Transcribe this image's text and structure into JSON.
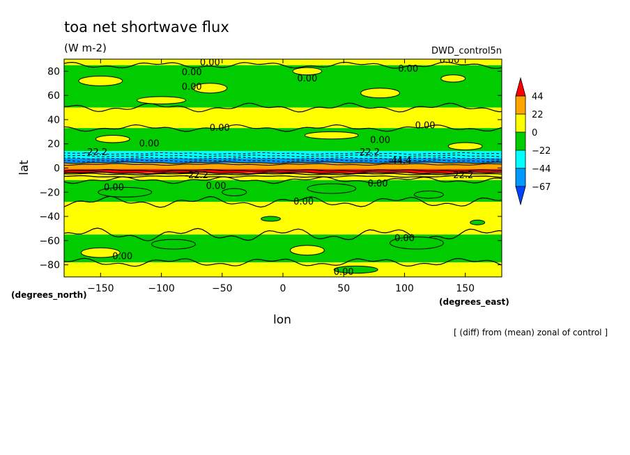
{
  "chart_data": {
    "type": "heatmap",
    "title": "toa net shortwave flux",
    "units": "(W m-2)",
    "run_label": "DWD_control5n",
    "xlabel": "lon",
    "ylabel": "lat",
    "x_unit_label": "(degrees_east)",
    "y_unit_label": "(degrees_north)",
    "subtitle": "[ (diff) from (mean) zonal of control ]",
    "xlim": [
      -180,
      180
    ],
    "ylim": [
      -90,
      90
    ],
    "x_ticks": [
      -150,
      -100,
      -50,
      0,
      50,
      100,
      150
    ],
    "y_ticks": [
      80,
      60,
      40,
      20,
      0,
      -20,
      -40,
      -60,
      -80
    ],
    "colorbar": {
      "levels": [
        "44",
        "22",
        "0",
        "-22",
        "-44",
        "-67"
      ],
      "colors": [
        "#ff0000",
        "#ffa500",
        "#ffff00",
        "#00cc00",
        "#00ffff",
        "#0099ff",
        "#0044ff"
      ]
    },
    "bands": [
      {
        "lat_top": 90,
        "lat_bottom": 85,
        "value": 5
      },
      {
        "lat_top": 85,
        "lat_bottom": 50,
        "value": -8
      },
      {
        "lat_top": 50,
        "lat_bottom": 33,
        "value": 5
      },
      {
        "lat_top": 33,
        "lat_bottom": 14,
        "value": -8
      },
      {
        "lat_top": 14,
        "lat_bottom": 8,
        "value": -30
      },
      {
        "lat_top": 8,
        "lat_bottom": 4,
        "value": -50
      },
      {
        "lat_top": 4,
        "lat_bottom": -1,
        "value": 40
      },
      {
        "lat_top": -1,
        "lat_bottom": -4,
        "value": 50
      },
      {
        "lat_top": -4,
        "lat_bottom": -10,
        "value": 5
      },
      {
        "lat_top": -10,
        "lat_bottom": -28,
        "value": -8
      },
      {
        "lat_top": -28,
        "lat_bottom": -55,
        "value": 5
      },
      {
        "lat_top": -55,
        "lat_bottom": -78,
        "value": -8
      },
      {
        "lat_top": -78,
        "lat_bottom": -90,
        "value": 5
      }
    ],
    "annotations": [
      {
        "text": "0.00",
        "lon": -60,
        "lat": 87
      },
      {
        "text": "0.00",
        "lon": -75,
        "lat": 79
      },
      {
        "text": "0.00",
        "lon": -75,
        "lat": 67
      },
      {
        "text": "0.00",
        "lon": 20,
        "lat": 74
      },
      {
        "text": "0.00",
        "lon": 103,
        "lat": 82
      },
      {
        "text": "0.00",
        "lon": 137,
        "lat": 89
      },
      {
        "text": "0.00",
        "lon": -52,
        "lat": 33
      },
      {
        "text": "0.00",
        "lon": -110,
        "lat": 20
      },
      {
        "text": "0.00",
        "lon": 80,
        "lat": 23
      },
      {
        "text": "0.00",
        "lon": 117,
        "lat": 35
      },
      {
        "text": "-22.2",
        "lon": -154,
        "lat": 13
      },
      {
        "text": "-22.2",
        "lon": 70,
        "lat": 13
      },
      {
        "text": "-44.4",
        "lon": 96,
        "lat": 6
      },
      {
        "text": "-22.2",
        "lon": -71,
        "lat": -6
      },
      {
        "text": "-22.2",
        "lon": 147,
        "lat": -6
      },
      {
        "text": "0.00",
        "lon": -139,
        "lat": -16
      },
      {
        "text": "0.00",
        "lon": -55,
        "lat": -15
      },
      {
        "text": "0.00",
        "lon": 17,
        "lat": -28
      },
      {
        "text": "0.00",
        "lon": 78,
        "lat": -13
      },
      {
        "text": "0.00",
        "lon": 100,
        "lat": -58
      },
      {
        "text": "0.00",
        "lon": -132,
        "lat": -73
      },
      {
        "text": "0.00",
        "lon": 50,
        "lat": -86
      }
    ]
  }
}
